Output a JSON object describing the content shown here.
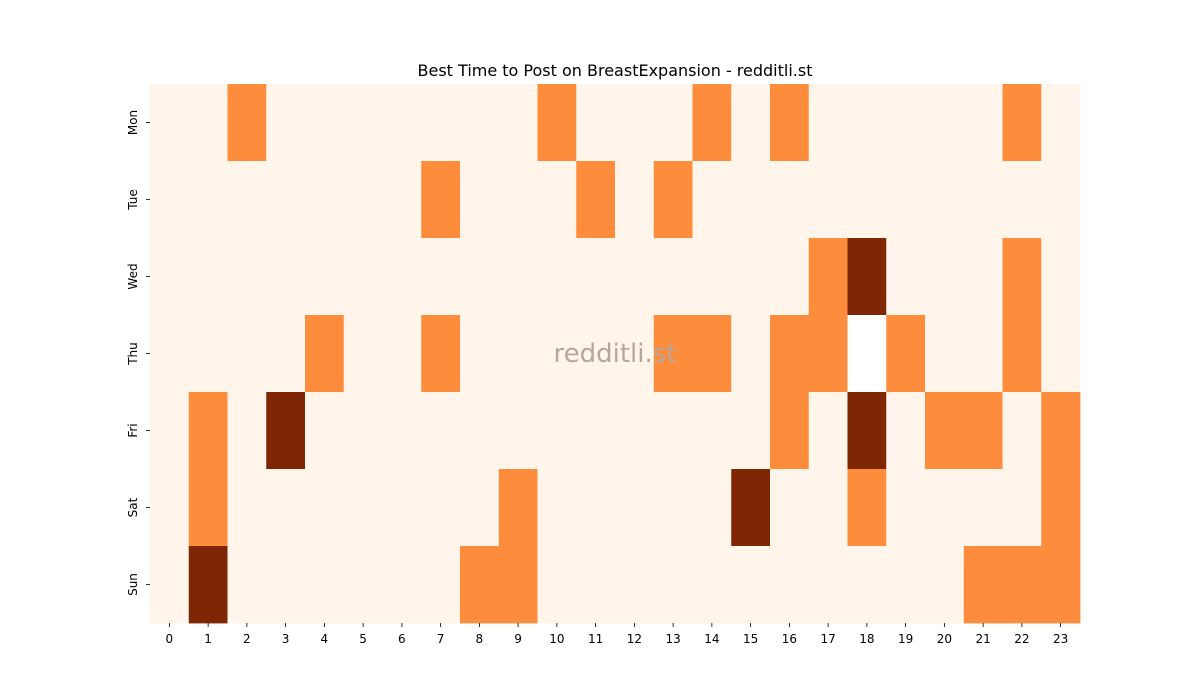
{
  "chart_data": {
    "type": "heatmap",
    "title": "Best Time to Post on BreastExpansion - redditli.st",
    "watermark": "redditli.st",
    "xlabel": "",
    "ylabel": "",
    "x_categories": [
      "0",
      "1",
      "2",
      "3",
      "4",
      "5",
      "6",
      "7",
      "8",
      "9",
      "10",
      "11",
      "12",
      "13",
      "14",
      "15",
      "16",
      "17",
      "18",
      "19",
      "20",
      "21",
      "22",
      "23"
    ],
    "y_categories": [
      "Mon",
      "Tue",
      "Wed",
      "Thu",
      "Fri",
      "Sat",
      "Sun"
    ],
    "values": [
      [
        0,
        0,
        1,
        0,
        0,
        0,
        0,
        0,
        0,
        0,
        1,
        0,
        0,
        0,
        1,
        0,
        1,
        0,
        0,
        0,
        0,
        0,
        1,
        0
      ],
      [
        0,
        0,
        0,
        0,
        0,
        0,
        0,
        1,
        0,
        0,
        0,
        1,
        0,
        1,
        0,
        0,
        0,
        0,
        0,
        0,
        0,
        0,
        0,
        0
      ],
      [
        0,
        0,
        0,
        0,
        0,
        0,
        0,
        0,
        0,
        0,
        0,
        0,
        0,
        0,
        0,
        0,
        0,
        1,
        2,
        0,
        0,
        0,
        1,
        0
      ],
      [
        0,
        0,
        0,
        0,
        1,
        0,
        0,
        1,
        0,
        0,
        0,
        0,
        0,
        1,
        1,
        0,
        1,
        1,
        null,
        1,
        0,
        0,
        1,
        0
      ],
      [
        0,
        1,
        0,
        2,
        0,
        0,
        0,
        0,
        0,
        0,
        0,
        0,
        0,
        0,
        0,
        0,
        1,
        0,
        2,
        0,
        1,
        1,
        0,
        1
      ],
      [
        0,
        1,
        0,
        0,
        0,
        0,
        0,
        0,
        0,
        1,
        0,
        0,
        0,
        0,
        0,
        2,
        0,
        0,
        1,
        0,
        0,
        0,
        0,
        1
      ],
      [
        0,
        2,
        0,
        0,
        0,
        0,
        0,
        0,
        1,
        1,
        0,
        0,
        0,
        0,
        0,
        0,
        0,
        0,
        0,
        0,
        0,
        1,
        1,
        1
      ]
    ],
    "colors": {
      "level_0": "#fff5eb",
      "level_1": "#fd8d3c",
      "level_2": "#7f2704",
      "missing": "#ffffff"
    },
    "colorbar": false,
    "grid": false
  }
}
